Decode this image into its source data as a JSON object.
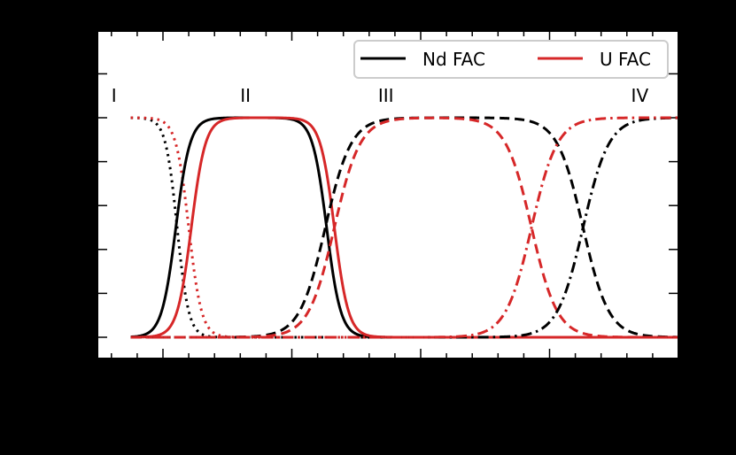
{
  "chart_data": {
    "type": "line",
    "title": "",
    "xlabel": "",
    "ylabel": "",
    "xlim": [
      -0.5,
      4.0
    ],
    "ylim": [
      -0.1,
      1.45
    ],
    "xticks_major": [
      0,
      1,
      2,
      3,
      4
    ],
    "yticks_major": [
      0.0,
      0.2,
      0.4,
      0.6,
      0.8,
      1.0,
      1.2
    ],
    "grid": false,
    "legend_position": "upper right",
    "legend": [
      {
        "label": "Nd FAC",
        "color": "#000000"
      },
      {
        "label": "U FAC",
        "color": "#d62728"
      }
    ],
    "annotations": [
      {
        "text": "I",
        "x": -0.38,
        "y": 1.1
      },
      {
        "text": "II",
        "x": 0.64,
        "y": 1.1
      },
      {
        "text": "III",
        "x": 1.73,
        "y": 1.1
      },
      {
        "text": "IV",
        "x": 3.7,
        "y": 1.1
      }
    ],
    "x_start": -0.25,
    "series": [
      {
        "name": "Nd FAC (I)",
        "element": "Nd",
        "style": "dotted",
        "color": "#000000",
        "shape": "falling",
        "midpoints": [
          0.11
        ],
        "width": 0.045
      },
      {
        "name": "U FAC (I)",
        "element": "U",
        "style": "dotted",
        "color": "#d62728",
        "shape": "falling",
        "midpoints": [
          0.2
        ],
        "width": 0.05
      },
      {
        "name": "Nd FAC (II)",
        "element": "Nd",
        "style": "solid",
        "color": "#000000",
        "shape": "peak",
        "midpoints": [
          0.1,
          1.27
        ],
        "width": 0.055
      },
      {
        "name": "U FAC (II)",
        "element": "U",
        "style": "solid",
        "color": "#d62728",
        "shape": "peak",
        "midpoints": [
          0.22,
          1.33
        ],
        "width": 0.055
      },
      {
        "name": "Nd FAC (III)",
        "element": "Nd",
        "style": "dashed",
        "color": "#000000",
        "shape": "peak",
        "midpoints": [
          1.26,
          3.26
        ],
        "width": 0.1
      },
      {
        "name": "U FAC (III)",
        "element": "U",
        "style": "dashed",
        "color": "#d62728",
        "shape": "peak",
        "midpoints": [
          1.33,
          2.86
        ],
        "width": 0.1
      },
      {
        "name": "Nd FAC (IV)",
        "element": "Nd",
        "style": "dashdot",
        "color": "#000000",
        "shape": "rising",
        "midpoints": [
          3.26
        ],
        "width": 0.1
      },
      {
        "name": "U FAC (IV)",
        "element": "U",
        "style": "dashdot",
        "color": "#d62728",
        "shape": "rising",
        "midpoints": [
          2.86
        ],
        "width": 0.1
      }
    ]
  },
  "colors": {
    "background": "#000000",
    "plot_bg": "#ffffff",
    "nd": "#000000",
    "u": "#d62728",
    "legend_border": "#cccccc"
  }
}
